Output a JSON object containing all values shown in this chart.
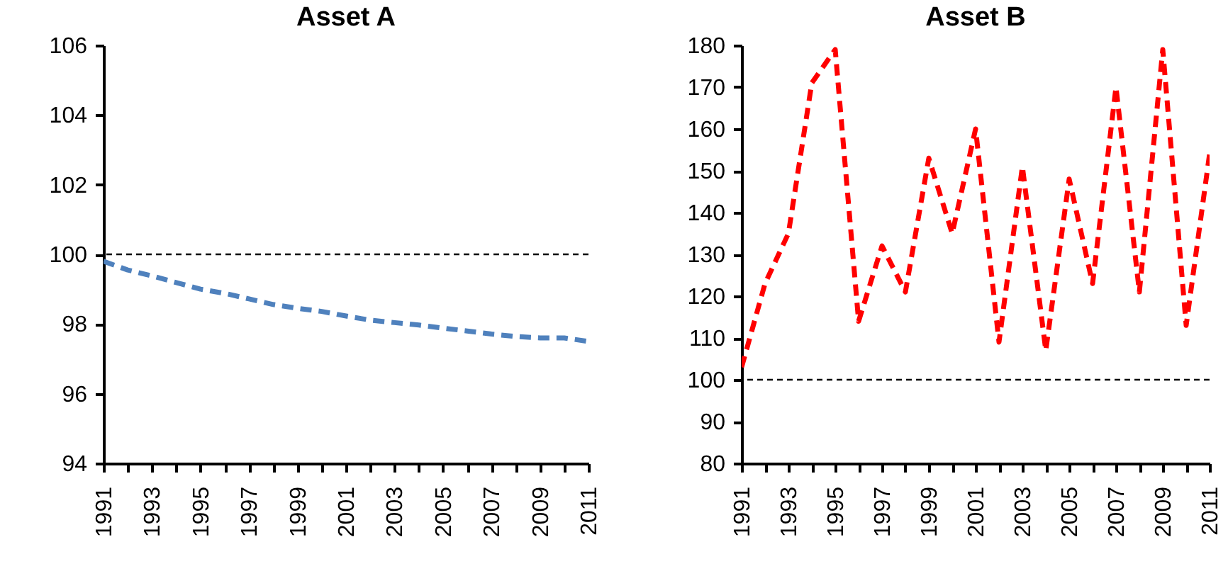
{
  "chart_data": [
    {
      "type": "line",
      "title": "Asset A",
      "line_style": "dashed",
      "color": "#4f81bd",
      "x": [
        1991,
        1992,
        1993,
        1994,
        1995,
        1996,
        1997,
        1998,
        1999,
        2000,
        2001,
        2002,
        2003,
        2004,
        2005,
        2006,
        2007,
        2008,
        2009,
        2010,
        2011
      ],
      "values": [
        99.8,
        99.55,
        99.38,
        99.19,
        99.0,
        98.88,
        98.72,
        98.56,
        98.45,
        98.36,
        98.23,
        98.11,
        98.04,
        97.97,
        97.88,
        97.8,
        97.71,
        97.64,
        97.6,
        97.6,
        97.5
      ],
      "ylim": [
        94,
        106
      ],
      "yticks": [
        94,
        96,
        98,
        100,
        102,
        104,
        106
      ],
      "xlim": [
        1991,
        2011
      ],
      "xticks": [
        1991,
        {
          "value": 1992,
          "label": null
        },
        1993,
        {
          "value": 1994,
          "label": null
        },
        1995,
        {
          "value": 1996,
          "label": null
        },
        1997,
        {
          "value": 1998,
          "label": null
        },
        1999,
        {
          "value": 2000,
          "label": null
        },
        2001,
        {
          "value": 2002,
          "label": null
        },
        2003,
        {
          "value": 2004,
          "label": null
        },
        2005,
        {
          "value": 2006,
          "label": null
        },
        2007,
        {
          "value": 2008,
          "label": null
        },
        2009,
        {
          "value": 2010,
          "label": null
        },
        2011
      ],
      "ref_lines": [
        {
          "axis": "y",
          "value": 100,
          "line_style": "dashed",
          "color": "#000000"
        }
      ]
    },
    {
      "type": "line",
      "title": "Asset B",
      "line_style": "dashed",
      "color": "#ff0000",
      "x": [
        1991,
        1992,
        1993,
        1994,
        1995,
        1996,
        1997,
        1998,
        1999,
        2000,
        2001,
        2002,
        2003,
        2004,
        2005,
        2006,
        2007,
        2008,
        2009,
        2010,
        2011
      ],
      "values": [
        103,
        123,
        135,
        171,
        179,
        114,
        132,
        121,
        153,
        135,
        160,
        109,
        151,
        107,
        148,
        123,
        170,
        121,
        179,
        113,
        154
      ],
      "ylim": [
        80,
        180
      ],
      "yticks": [
        80,
        90,
        100,
        110,
        120,
        130,
        140,
        150,
        160,
        170,
        180
      ],
      "xlim": [
        1991,
        2011
      ],
      "xticks": [
        1991,
        {
          "value": 1992,
          "label": null
        },
        1993,
        {
          "value": 1994,
          "label": null
        },
        1995,
        {
          "value": 1996,
          "label": null
        },
        1997,
        {
          "value": 1998,
          "label": null
        },
        1999,
        {
          "value": 2000,
          "label": null
        },
        2001,
        {
          "value": 2002,
          "label": null
        },
        2003,
        {
          "value": 2004,
          "label": null
        },
        2005,
        {
          "value": 2006,
          "label": null
        },
        2007,
        {
          "value": 2008,
          "label": null
        },
        2009,
        {
          "value": 2010,
          "label": null
        },
        2011
      ],
      "ref_lines": [
        {
          "axis": "y",
          "value": 100,
          "line_style": "dashed",
          "color": "#000000"
        }
      ]
    }
  ]
}
